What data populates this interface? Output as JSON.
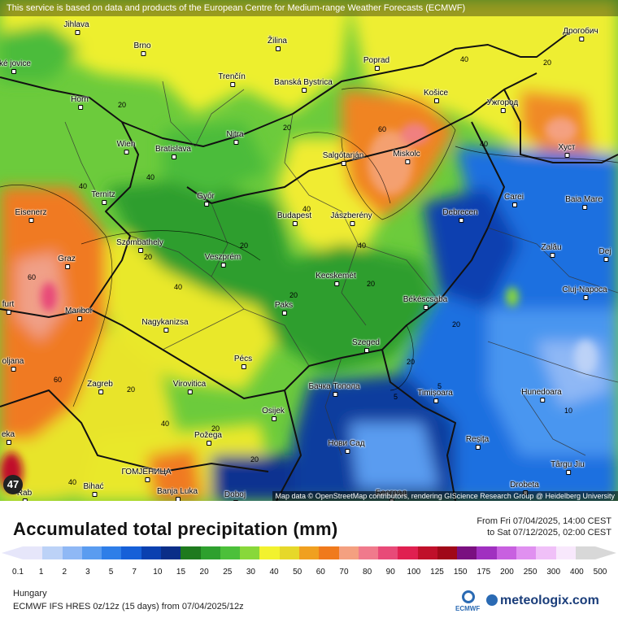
{
  "map": {
    "banner": "This service is based on data and products of the European Centre for Medium-range Weather Forecasts (ECMWF)",
    "credit": "Map data © OpenStreetMap contributors, rendering GIScience Research Group @ Heidelberg University",
    "max_value": "47",
    "cities": [
      {
        "name": "Jihlava"
      },
      {
        "name": "Brno"
      },
      {
        "name": "Žilina"
      },
      {
        "name": "Poprad"
      },
      {
        "name": "Дрогобич"
      },
      {
        "name": "Trenčín"
      },
      {
        "name": "Banská Bystrica"
      },
      {
        "name": "Košice"
      },
      {
        "name": "Ужгород"
      },
      {
        "name": "Horn"
      },
      {
        "name": "Nitra"
      },
      {
        "name": "Wien"
      },
      {
        "name": "Bratislava"
      },
      {
        "name": "Salgótarján"
      },
      {
        "name": "Miskolc"
      },
      {
        "name": "Хуст"
      },
      {
        "name": "Ternitz"
      },
      {
        "name": "Győr"
      },
      {
        "name": "Carei"
      },
      {
        "name": "Baia Mare"
      },
      {
        "name": "Eisenerz"
      },
      {
        "name": "Budapest"
      },
      {
        "name": "Jászberény"
      },
      {
        "name": "Debrecen"
      },
      {
        "name": "Szombathely"
      },
      {
        "name": "Zalău"
      },
      {
        "name": "Graz"
      },
      {
        "name": "Veszprém"
      },
      {
        "name": "Dej"
      },
      {
        "name": "Kecskemét"
      },
      {
        "name": "Cluj-Napoca"
      },
      {
        "name": "Maribor"
      },
      {
        "name": "Paks"
      },
      {
        "name": "Békéscsaba"
      },
      {
        "name": "Nagykanizsa"
      },
      {
        "name": "Pécs"
      },
      {
        "name": "Szeged"
      },
      {
        "name": "Zagreb"
      },
      {
        "name": "Virovitica"
      },
      {
        "name": "Бачка Топола"
      },
      {
        "name": "Timișoara"
      },
      {
        "name": "Hunedoara"
      },
      {
        "name": "Osijek"
      },
      {
        "name": "Požega"
      },
      {
        "name": "Нови Сад"
      },
      {
        "name": "Reșița"
      },
      {
        "name": "Târgu Jiu"
      },
      {
        "name": "ГОМЈЕНИЦА"
      },
      {
        "name": "Bihać"
      },
      {
        "name": "Banja Luka"
      },
      {
        "name": "Doboj"
      },
      {
        "name": "Београд"
      },
      {
        "name": "Drobeta"
      },
      {
        "name": "ské jovice"
      },
      {
        "name": "furt"
      },
      {
        "name": "oljana"
      },
      {
        "name": "eka"
      },
      {
        "name": "Rab"
      }
    ],
    "isolines": [
      "20",
      "20",
      "40",
      "20",
      "40",
      "60",
      "40",
      "20",
      "20",
      "40",
      "20",
      "40",
      "20",
      "40",
      "20",
      "20",
      "40",
      "60",
      "60",
      "20",
      "5",
      "5",
      "10",
      "20",
      "40",
      "20",
      "40"
    ]
  },
  "legend": {
    "title": "Accumulated total precipitation (mm)",
    "period_from": "From Fri 07/04/2025, 14:00 CEST",
    "period_to": "to Sat 07/12/2025, 02:00 CEST",
    "colors": [
      "#e6e6fa",
      "#bcd2f7",
      "#8fb8f5",
      "#5a9cf0",
      "#2e7ee8",
      "#1660d8",
      "#0a40b0",
      "#0a2e88",
      "#1e7a1e",
      "#2ea02e",
      "#4cc03a",
      "#88d83a",
      "#f2f22e",
      "#e6d82a",
      "#f0a020",
      "#f07a1c",
      "#f4a080",
      "#f07a8c",
      "#e84a78",
      "#e02050",
      "#c0102a",
      "#a00818",
      "#7a1080",
      "#a030c0",
      "#c860e0",
      "#e090f0",
      "#f0c0f8",
      "#f8e8fc",
      "#d8d8d8"
    ],
    "ticks": [
      "0.1",
      "1",
      "2",
      "3",
      "5",
      "7",
      "10",
      "15",
      "20",
      "25",
      "30",
      "40",
      "50",
      "60",
      "70",
      "80",
      "90",
      "100",
      "125",
      "150",
      "175",
      "200",
      "250",
      "300",
      "400",
      "500"
    ],
    "region": "Hungary",
    "model": "ECMWF IFS HRES 0z/12z (15 days) from 07/04/2025/12z",
    "ecmwf_label": "ECMWF",
    "brand": "meteologix.com"
  }
}
